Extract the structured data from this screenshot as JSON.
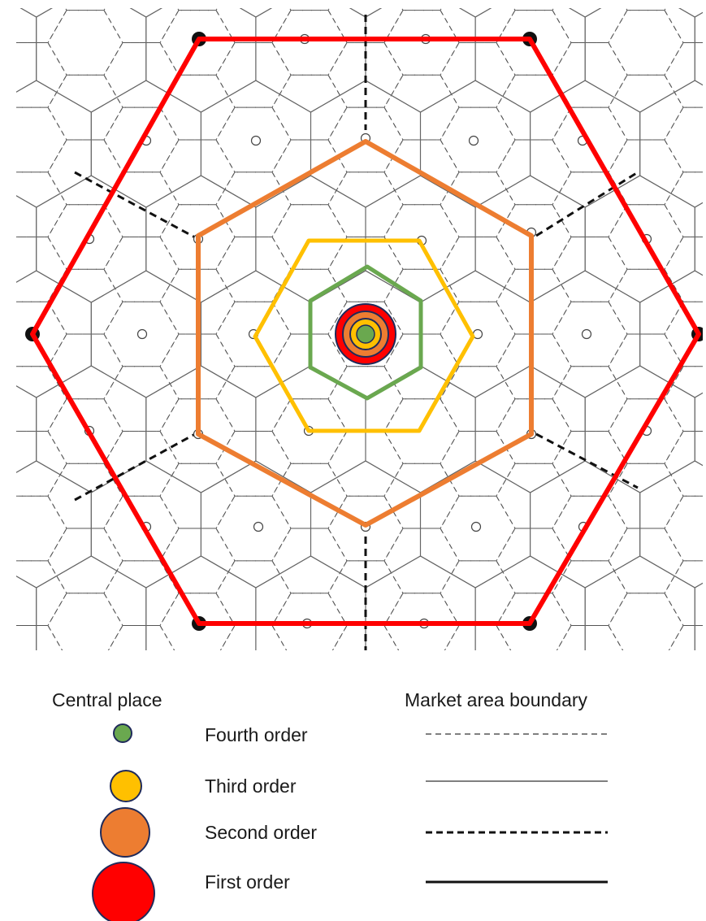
{
  "legend": {
    "central_place_title": "Central place",
    "market_area_title": "Market area boundary",
    "orders": [
      {
        "label": "Fourth order",
        "color": "#6aa84f",
        "boundary_style": "thin-dashed"
      },
      {
        "label": "Third order",
        "color": "#ffc000",
        "boundary_style": "thin-solid"
      },
      {
        "label": "Second order",
        "color": "#ed7d31",
        "boundary_style": "thick-dashed"
      },
      {
        "label": "First order",
        "color": "#ff0000",
        "boundary_style": "thick-solid"
      }
    ]
  },
  "hexagon_colors": {
    "first_order": "#ff0000",
    "second_order": "#ed7d31",
    "third_order": "#ffc000",
    "fourth_order": "#6aa84f"
  },
  "marker_outline": "#1f2a5a"
}
